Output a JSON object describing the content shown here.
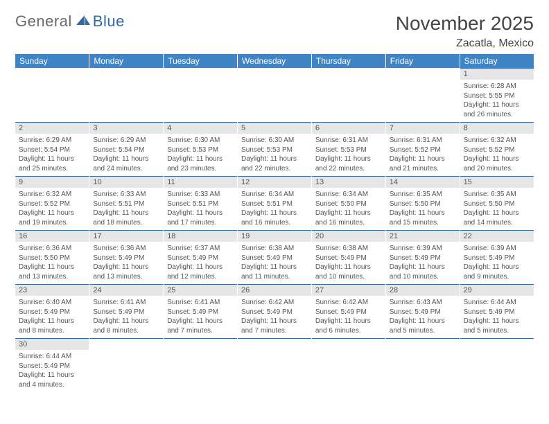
{
  "logo": {
    "part1": "General",
    "part2": "Blue"
  },
  "header": {
    "title": "November 2025",
    "location": "Zacatla, Mexico"
  },
  "columns": [
    "Sunday",
    "Monday",
    "Tuesday",
    "Wednesday",
    "Thursday",
    "Friday",
    "Saturday"
  ],
  "colors": {
    "header_bg": "#3f84c4",
    "header_text": "#ffffff",
    "daynum_bg": "#e6e6e6",
    "rule": "#2f6aa8",
    "text": "#555555",
    "logo_blue": "#2f6aa8"
  },
  "weeks": [
    [
      null,
      null,
      null,
      null,
      null,
      null,
      {
        "n": "1",
        "sunrise": "Sunrise: 6:28 AM",
        "sunset": "Sunset: 5:55 PM",
        "day1": "Daylight: 11 hours",
        "day2": "and 26 minutes."
      }
    ],
    [
      {
        "n": "2",
        "sunrise": "Sunrise: 6:29 AM",
        "sunset": "Sunset: 5:54 PM",
        "day1": "Daylight: 11 hours",
        "day2": "and 25 minutes."
      },
      {
        "n": "3",
        "sunrise": "Sunrise: 6:29 AM",
        "sunset": "Sunset: 5:54 PM",
        "day1": "Daylight: 11 hours",
        "day2": "and 24 minutes."
      },
      {
        "n": "4",
        "sunrise": "Sunrise: 6:30 AM",
        "sunset": "Sunset: 5:53 PM",
        "day1": "Daylight: 11 hours",
        "day2": "and 23 minutes."
      },
      {
        "n": "5",
        "sunrise": "Sunrise: 6:30 AM",
        "sunset": "Sunset: 5:53 PM",
        "day1": "Daylight: 11 hours",
        "day2": "and 22 minutes."
      },
      {
        "n": "6",
        "sunrise": "Sunrise: 6:31 AM",
        "sunset": "Sunset: 5:53 PM",
        "day1": "Daylight: 11 hours",
        "day2": "and 22 minutes."
      },
      {
        "n": "7",
        "sunrise": "Sunrise: 6:31 AM",
        "sunset": "Sunset: 5:52 PM",
        "day1": "Daylight: 11 hours",
        "day2": "and 21 minutes."
      },
      {
        "n": "8",
        "sunrise": "Sunrise: 6:32 AM",
        "sunset": "Sunset: 5:52 PM",
        "day1": "Daylight: 11 hours",
        "day2": "and 20 minutes."
      }
    ],
    [
      {
        "n": "9",
        "sunrise": "Sunrise: 6:32 AM",
        "sunset": "Sunset: 5:52 PM",
        "day1": "Daylight: 11 hours",
        "day2": "and 19 minutes."
      },
      {
        "n": "10",
        "sunrise": "Sunrise: 6:33 AM",
        "sunset": "Sunset: 5:51 PM",
        "day1": "Daylight: 11 hours",
        "day2": "and 18 minutes."
      },
      {
        "n": "11",
        "sunrise": "Sunrise: 6:33 AM",
        "sunset": "Sunset: 5:51 PM",
        "day1": "Daylight: 11 hours",
        "day2": "and 17 minutes."
      },
      {
        "n": "12",
        "sunrise": "Sunrise: 6:34 AM",
        "sunset": "Sunset: 5:51 PM",
        "day1": "Daylight: 11 hours",
        "day2": "and 16 minutes."
      },
      {
        "n": "13",
        "sunrise": "Sunrise: 6:34 AM",
        "sunset": "Sunset: 5:50 PM",
        "day1": "Daylight: 11 hours",
        "day2": "and 16 minutes."
      },
      {
        "n": "14",
        "sunrise": "Sunrise: 6:35 AM",
        "sunset": "Sunset: 5:50 PM",
        "day1": "Daylight: 11 hours",
        "day2": "and 15 minutes."
      },
      {
        "n": "15",
        "sunrise": "Sunrise: 6:35 AM",
        "sunset": "Sunset: 5:50 PM",
        "day1": "Daylight: 11 hours",
        "day2": "and 14 minutes."
      }
    ],
    [
      {
        "n": "16",
        "sunrise": "Sunrise: 6:36 AM",
        "sunset": "Sunset: 5:50 PM",
        "day1": "Daylight: 11 hours",
        "day2": "and 13 minutes."
      },
      {
        "n": "17",
        "sunrise": "Sunrise: 6:36 AM",
        "sunset": "Sunset: 5:49 PM",
        "day1": "Daylight: 11 hours",
        "day2": "and 13 minutes."
      },
      {
        "n": "18",
        "sunrise": "Sunrise: 6:37 AM",
        "sunset": "Sunset: 5:49 PM",
        "day1": "Daylight: 11 hours",
        "day2": "and 12 minutes."
      },
      {
        "n": "19",
        "sunrise": "Sunrise: 6:38 AM",
        "sunset": "Sunset: 5:49 PM",
        "day1": "Daylight: 11 hours",
        "day2": "and 11 minutes."
      },
      {
        "n": "20",
        "sunrise": "Sunrise: 6:38 AM",
        "sunset": "Sunset: 5:49 PM",
        "day1": "Daylight: 11 hours",
        "day2": "and 10 minutes."
      },
      {
        "n": "21",
        "sunrise": "Sunrise: 6:39 AM",
        "sunset": "Sunset: 5:49 PM",
        "day1": "Daylight: 11 hours",
        "day2": "and 10 minutes."
      },
      {
        "n": "22",
        "sunrise": "Sunrise: 6:39 AM",
        "sunset": "Sunset: 5:49 PM",
        "day1": "Daylight: 11 hours",
        "day2": "and 9 minutes."
      }
    ],
    [
      {
        "n": "23",
        "sunrise": "Sunrise: 6:40 AM",
        "sunset": "Sunset: 5:49 PM",
        "day1": "Daylight: 11 hours",
        "day2": "and 8 minutes."
      },
      {
        "n": "24",
        "sunrise": "Sunrise: 6:41 AM",
        "sunset": "Sunset: 5:49 PM",
        "day1": "Daylight: 11 hours",
        "day2": "and 8 minutes."
      },
      {
        "n": "25",
        "sunrise": "Sunrise: 6:41 AM",
        "sunset": "Sunset: 5:49 PM",
        "day1": "Daylight: 11 hours",
        "day2": "and 7 minutes."
      },
      {
        "n": "26",
        "sunrise": "Sunrise: 6:42 AM",
        "sunset": "Sunset: 5:49 PM",
        "day1": "Daylight: 11 hours",
        "day2": "and 7 minutes."
      },
      {
        "n": "27",
        "sunrise": "Sunrise: 6:42 AM",
        "sunset": "Sunset: 5:49 PM",
        "day1": "Daylight: 11 hours",
        "day2": "and 6 minutes."
      },
      {
        "n": "28",
        "sunrise": "Sunrise: 6:43 AM",
        "sunset": "Sunset: 5:49 PM",
        "day1": "Daylight: 11 hours",
        "day2": "and 5 minutes."
      },
      {
        "n": "29",
        "sunrise": "Sunrise: 6:44 AM",
        "sunset": "Sunset: 5:49 PM",
        "day1": "Daylight: 11 hours",
        "day2": "and 5 minutes."
      }
    ],
    [
      {
        "n": "30",
        "sunrise": "Sunrise: 6:44 AM",
        "sunset": "Sunset: 5:49 PM",
        "day1": "Daylight: 11 hours",
        "day2": "and 4 minutes."
      },
      null,
      null,
      null,
      null,
      null,
      null
    ]
  ]
}
